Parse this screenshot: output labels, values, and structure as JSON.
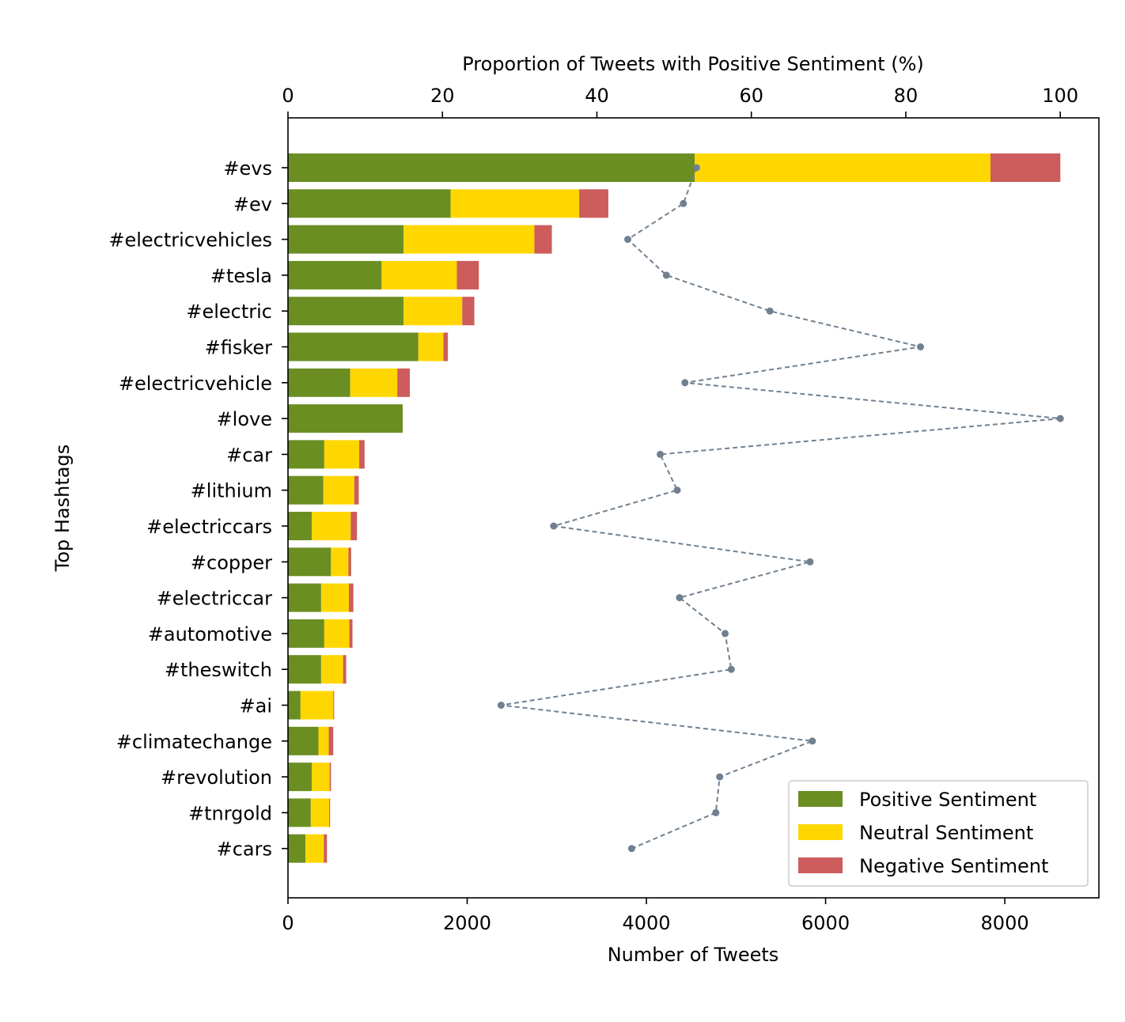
{
  "chart_data": {
    "type": "bar",
    "orientation": "horizontal-stacked",
    "xlabel": "Number of Tweets",
    "ylabel": "Top Hashtags",
    "top_xlabel": "Proportion of Tweets with Positive Sentiment (%)",
    "xlim": [
      0,
      9050
    ],
    "top_xlim": [
      0,
      105
    ],
    "x_ticks": [
      "0",
      "2000",
      "4000",
      "6000",
      "8000"
    ],
    "top_x_ticks": [
      "0",
      "20",
      "40",
      "60",
      "80",
      "100"
    ],
    "categories": [
      "#evs",
      "#ev",
      "#electricvehicles",
      "#tesla",
      "#electric",
      "#fisker",
      "#electricvehicle",
      "#love",
      "#car",
      "#lithium",
      "#electriccars",
      "#copper",
      "#electriccar",
      "#automotive",
      "#theswitch",
      "#ai",
      "#climatechange",
      "#revolution",
      "#tnrgold",
      "#cars"
    ],
    "series": [
      {
        "name": "Positive Sentiment",
        "color": "#6b8e23",
        "values": [
          4540,
          1815,
          1290,
          1045,
          1290,
          1455,
          695,
          1280,
          405,
          395,
          265,
          480,
          370,
          405,
          370,
          140,
          340,
          265,
          255,
          195
        ]
      },
      {
        "name": "Neutral Sentiment",
        "color": "#ffd700",
        "values": [
          3300,
          1435,
          1460,
          840,
          655,
          280,
          525,
          0,
          390,
          345,
          435,
          195,
          310,
          280,
          245,
          365,
          115,
          200,
          205,
          205
        ]
      },
      {
        "name": "Negative Sentiment",
        "color": "#cd5c5c",
        "values": [
          780,
          325,
          195,
          245,
          135,
          50,
          140,
          0,
          60,
          50,
          70,
          30,
          50,
          35,
          35,
          10,
          50,
          15,
          10,
          35
        ]
      }
    ],
    "line_series": {
      "name": "Positive proportion",
      "color": "#708090",
      "style": "dashed",
      "values": [
        52.9,
        51.2,
        44.0,
        49.0,
        62.4,
        81.9,
        51.4,
        100.0,
        48.2,
        50.4,
        34.4,
        67.6,
        50.7,
        56.6,
        57.4,
        27.6,
        67.9,
        55.9,
        55.4,
        44.5
      ]
    },
    "legend": {
      "position": "bottom-right",
      "entries": [
        "Positive Sentiment",
        "Neutral Sentiment",
        "Negative Sentiment"
      ]
    }
  }
}
